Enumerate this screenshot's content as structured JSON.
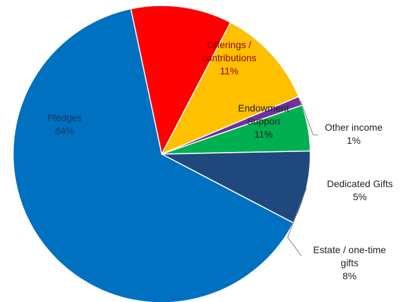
{
  "chart_data": {
    "type": "pie",
    "slices": [
      {
        "label": "Offerings / contributions",
        "label_lines": [
          "Offerings /",
          "contributions"
        ],
        "value": 11,
        "percent_label": "11%",
        "color": "#FF0000",
        "label_color": "#8B0000"
      },
      {
        "label": "Endowment Support",
        "label_lines": [
          "Endowment",
          "Support"
        ],
        "value": 11,
        "percent_label": "11%",
        "color": "#FFC000",
        "label_color": "#222222"
      },
      {
        "label": "Other income",
        "label_lines": [
          "Other income"
        ],
        "value": 1,
        "percent_label": "1%",
        "color": "#7030A0",
        "label_color": "#222222"
      },
      {
        "label": "Dedicated Gifts",
        "label_lines": [
          "Dedicated Gifts"
        ],
        "value": 5,
        "percent_label": "5%",
        "color": "#00B050",
        "label_color": "#222222"
      },
      {
        "label": "Estate / one-time gifts",
        "label_lines": [
          "Estate / one-time",
          "gifts"
        ],
        "value": 8,
        "percent_label": "8%",
        "color": "#1F497D",
        "label_color": "#222222"
      },
      {
        "label": "Pledges",
        "label_lines": [
          "Pledges"
        ],
        "value": 64,
        "percent_label": "64%",
        "color": "#0070C0",
        "label_color": "#1F3864"
      }
    ]
  }
}
